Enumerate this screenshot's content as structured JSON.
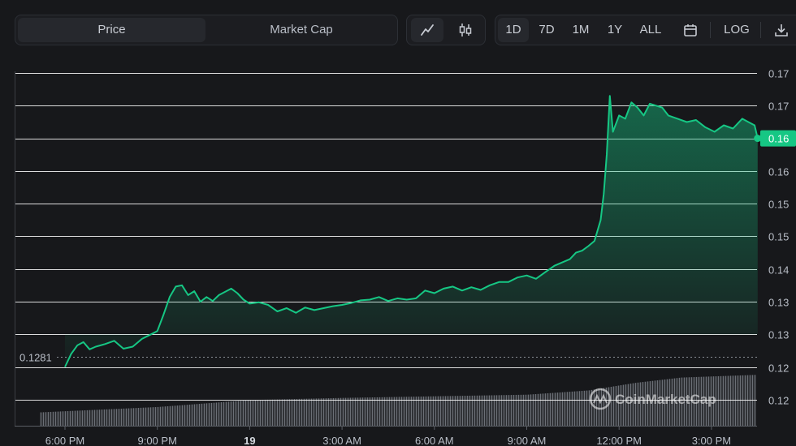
{
  "toolbar": {
    "view_tabs": [
      {
        "label": "Price",
        "active": true
      },
      {
        "label": "Market Cap",
        "active": false
      }
    ],
    "chart_types": [
      {
        "icon": "line-chart-icon",
        "active": true
      },
      {
        "icon": "candlestick-icon",
        "active": false
      }
    ],
    "ranges": [
      {
        "label": "1D",
        "active": true
      },
      {
        "label": "7D",
        "active": false
      },
      {
        "label": "1M",
        "active": false
      },
      {
        "label": "1Y",
        "active": false
      },
      {
        "label": "ALL",
        "active": false
      }
    ],
    "calendar_icon": "calendar-icon",
    "log_label": "LOG",
    "download_icon": "download-icon"
  },
  "watermark": "CoinMarketCap",
  "colors": {
    "line": "#16c784",
    "background": "#17181b",
    "grid": "#ffffff",
    "volume": "#6b6f76",
    "tag_bg": "#16c784"
  },
  "chart_data": {
    "type": "area",
    "y_tick_labels": [
      "0.17",
      "0.17",
      "0.16",
      "0.16",
      "0.15",
      "0.15",
      "0.14",
      "0.13",
      "0.13",
      "0.12",
      "0.12"
    ],
    "y_tick_values": [
      0.1715,
      0.1665,
      0.1615,
      0.1565,
      0.1515,
      0.1465,
      0.1415,
      0.1365,
      0.1315,
      0.1265,
      0.1215
    ],
    "ylim": [
      0.1175,
      0.1725
    ],
    "x_tick_labels": [
      {
        "label": "6:00 PM",
        "bold": false
      },
      {
        "label": "9:00 PM",
        "bold": false
      },
      {
        "label": "19",
        "bold": true
      },
      {
        "label": "3:00 AM",
        "bold": false
      },
      {
        "label": "6:00 AM",
        "bold": false
      },
      {
        "label": "9:00 AM",
        "bold": false
      },
      {
        "label": "12:00 PM",
        "bold": false
      },
      {
        "label": "3:00 PM",
        "bold": false
      }
    ],
    "x_tick_hours": [
      0,
      3,
      6,
      9,
      12,
      15,
      18,
      21
    ],
    "xlim": [
      -0.8,
      22.5
    ],
    "reference_line": {
      "value": 0.1281,
      "label": "0.1281"
    },
    "current_price": {
      "value": 0.1615,
      "label": "0.16"
    },
    "series": [
      {
        "x": [
          0.0,
          0.2,
          0.4,
          0.6,
          0.8,
          1.0,
          1.3,
          1.6,
          1.9,
          2.2,
          2.5,
          2.8,
          3.0,
          3.2,
          3.4,
          3.6,
          3.8,
          4.0,
          4.2,
          4.4,
          4.6,
          4.8,
          5.0,
          5.2,
          5.4,
          5.6,
          5.8,
          6.0,
          6.3,
          6.6,
          6.9,
          7.2,
          7.5,
          7.8,
          8.1,
          8.4,
          8.7,
          9.0,
          9.3,
          9.6,
          9.9,
          10.2,
          10.5,
          10.8,
          11.1,
          11.4,
          11.7,
          12.0,
          12.3,
          12.6,
          12.9,
          13.2,
          13.5,
          13.8,
          14.1,
          14.4,
          14.7,
          15.0,
          15.3,
          15.6,
          15.9,
          16.2,
          16.4,
          16.6,
          16.8,
          17.0,
          17.2,
          17.4,
          17.5,
          17.6,
          17.7,
          17.8,
          18.0,
          18.2,
          18.4,
          18.6,
          18.8,
          19.0,
          19.2,
          19.4,
          19.6,
          19.9,
          20.2,
          20.5,
          20.8,
          21.1,
          21.4,
          21.7,
          22.0,
          22.2,
          22.4,
          22.5
        ],
        "y": [
          0.1265,
          0.1285,
          0.1298,
          0.1303,
          0.1292,
          0.1296,
          0.13,
          0.1305,
          0.1293,
          0.1296,
          0.1308,
          0.1315,
          0.132,
          0.1345,
          0.1372,
          0.1388,
          0.139,
          0.1375,
          0.1381,
          0.1365,
          0.1372,
          0.1366,
          0.1375,
          0.138,
          0.1385,
          0.1378,
          0.1368,
          0.1362,
          0.1364,
          0.136,
          0.135,
          0.1355,
          0.1348,
          0.1356,
          0.1352,
          0.1355,
          0.1358,
          0.136,
          0.1363,
          0.1367,
          0.1368,
          0.1372,
          0.1366,
          0.137,
          0.1368,
          0.137,
          0.1382,
          0.1378,
          0.1385,
          0.1388,
          0.1382,
          0.1387,
          0.1383,
          0.139,
          0.1395,
          0.1395,
          0.1402,
          0.1405,
          0.14,
          0.141,
          0.142,
          0.1426,
          0.143,
          0.144,
          0.1443,
          0.145,
          0.1458,
          0.149,
          0.153,
          0.159,
          0.168,
          0.1625,
          0.165,
          0.1645,
          0.167,
          0.1662,
          0.165,
          0.1668,
          0.1665,
          0.1662,
          0.165,
          0.1645,
          0.164,
          0.1643,
          0.1632,
          0.1625,
          0.1635,
          0.163,
          0.1645,
          0.164,
          0.1635,
          0.1615
        ]
      }
    ],
    "volume": {
      "x_start": -0.8,
      "x_end": 22.4,
      "levels": [
        {
          "x": -0.8,
          "v": 0.25
        },
        {
          "x": 3.0,
          "v": 0.35
        },
        {
          "x": 6.0,
          "v": 0.48
        },
        {
          "x": 9.0,
          "v": 0.52
        },
        {
          "x": 12.0,
          "v": 0.55
        },
        {
          "x": 15.0,
          "v": 0.58
        },
        {
          "x": 17.0,
          "v": 0.66
        },
        {
          "x": 18.5,
          "v": 0.8
        },
        {
          "x": 20.0,
          "v": 0.9
        },
        {
          "x": 22.4,
          "v": 0.95
        }
      ]
    }
  }
}
